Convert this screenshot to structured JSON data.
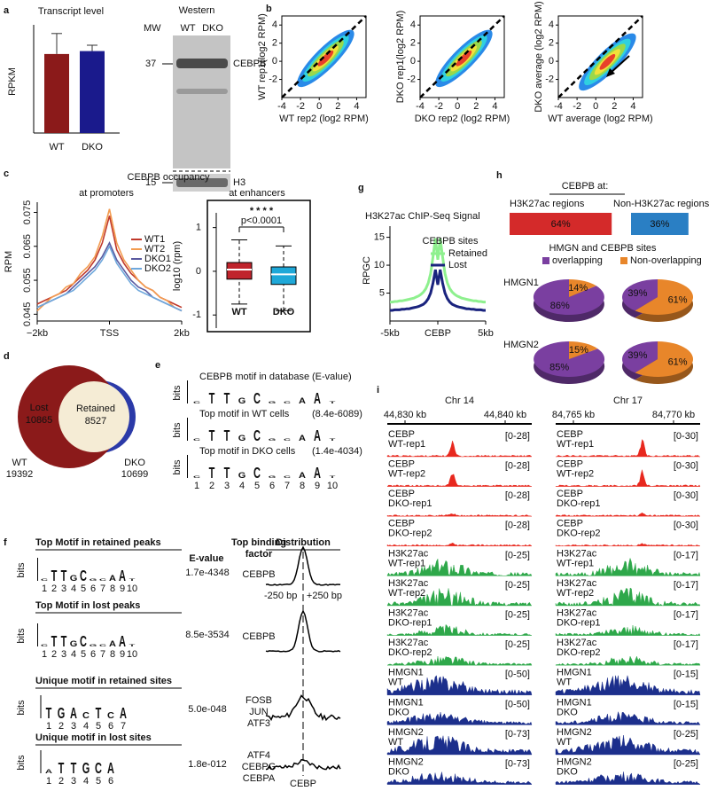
{
  "logo_colors": {
    "A": "#e8302e",
    "C": "#1e3ad8",
    "G": "#f4a21e",
    "T": "#25a33a"
  },
  "a": {
    "letter": "a",
    "title": "Transcript  level",
    "ylabel": "RPKM",
    "categories": [
      "WT",
      "DKO"
    ],
    "values": [
      27,
      28
    ],
    "errors": [
      7,
      2
    ],
    "colors": [
      "#8b1a1a",
      "#1a1a8c"
    ],
    "western": {
      "title": "Western",
      "mw": "MW",
      "lanes": [
        "WT",
        "DKO"
      ],
      "markers": [
        "37",
        "15"
      ],
      "bands": [
        "CEBPB",
        "H3"
      ]
    }
  },
  "b": {
    "letter": "b",
    "xlim": [
      -4,
      5
    ],
    "ylim": [
      -4,
      5
    ],
    "xticks": [
      -4,
      -2,
      0,
      2,
      4
    ],
    "yticks": [
      -2,
      0,
      2,
      4
    ],
    "plots": [
      {
        "xlabel": "WT rep2 (log2 RPM)",
        "ylabel": "WT rep1(log2 RPM)"
      },
      {
        "xlabel": "DKO rep2 (log2 RPM)",
        "ylabel": "DKO rep1(log2 RPM)"
      },
      {
        "xlabel": "WT average (log2 RPM)",
        "ylabel": "DKO average (log2 RPM)"
      }
    ]
  },
  "c": {
    "letter": "c",
    "title": "CEBPB occupancy",
    "promoters": {
      "type": "line",
      "title": "at promoters",
      "ylabel": "RPM",
      "xlim": [
        -2,
        2
      ],
      "ylim": [
        0.043,
        0.078
      ],
      "yticks": [
        0.045,
        0.055,
        0.065,
        0.075
      ],
      "xticks": [
        {
          "value": -2,
          "label": "−2kb"
        },
        {
          "value": 0,
          "label": "TSS"
        },
        {
          "value": 2,
          "label": "2kb"
        }
      ],
      "x": [
        -2,
        -1.8,
        -1.6,
        -1.4,
        -1.2,
        -1,
        -0.8,
        -0.6,
        -0.4,
        -0.2,
        0,
        0.2,
        0.4,
        0.6,
        0.8,
        1,
        1.2,
        1.4,
        1.6,
        1.8,
        2
      ],
      "series": [
        {
          "name": "WT1",
          "color": "#c0392b",
          "values": [
            0.048,
            0.049,
            0.05,
            0.051,
            0.052,
            0.054,
            0.056,
            0.058,
            0.061,
            0.066,
            0.074,
            0.064,
            0.06,
            0.057,
            0.055,
            0.053,
            0.052,
            0.05,
            0.049,
            0.048,
            0.047
          ]
        },
        {
          "name": "WT2",
          "color": "#f39c50",
          "values": [
            0.046,
            0.048,
            0.05,
            0.051,
            0.053,
            0.054,
            0.057,
            0.059,
            0.062,
            0.068,
            0.076,
            0.066,
            0.061,
            0.058,
            0.055,
            0.053,
            0.052,
            0.05,
            0.049,
            0.047,
            0.046
          ]
        },
        {
          "name": "DKO1",
          "color": "#5a5aa0",
          "values": [
            0.047,
            0.048,
            0.049,
            0.05,
            0.051,
            0.053,
            0.055,
            0.057,
            0.059,
            0.062,
            0.066,
            0.061,
            0.058,
            0.055,
            0.053,
            0.052,
            0.05,
            0.049,
            0.048,
            0.047,
            0.046
          ]
        },
        {
          "name": "DKO2",
          "color": "#6fa8dc",
          "values": [
            0.047,
            0.048,
            0.049,
            0.05,
            0.051,
            0.052,
            0.054,
            0.056,
            0.058,
            0.061,
            0.065,
            0.06,
            0.057,
            0.054,
            0.052,
            0.051,
            0.05,
            0.049,
            0.048,
            0.047,
            0.046
          ]
        }
      ]
    },
    "enhancers": {
      "type": "box",
      "title": "at enhancers",
      "ylabel": "log10 (rpm)",
      "ylim": [
        -1.3,
        1.5
      ],
      "yticks": [
        -1,
        0,
        1
      ],
      "categories": [
        "WT",
        "DKO"
      ],
      "colors": [
        "#c0242c",
        "#1fa8d8"
      ],
      "boxes": [
        {
          "whislo": -0.75,
          "q1": -0.18,
          "med": 0.04,
          "q3": 0.2,
          "whishi": 0.72
        },
        {
          "whislo": -0.9,
          "q1": -0.3,
          "med": -0.07,
          "q3": 0.1,
          "whishi": 0.58
        }
      ],
      "stars": "* * * *",
      "pvalue": "p<0.0001"
    }
  },
  "d": {
    "letter": "d",
    "lost": {
      "label": "Lost",
      "value": "10865"
    },
    "retained": {
      "label": "Retained",
      "value": "8527"
    },
    "wt": {
      "label": "WT",
      "value": "19392"
    },
    "dko": {
      "label": "DKO",
      "value": "10699"
    }
  },
  "e": {
    "letter": "e",
    "ylabel": "bits",
    "positions": [
      "1",
      "2",
      "3",
      "4",
      "5",
      "6",
      "7",
      "8",
      "9",
      "10"
    ],
    "logos": [
      {
        "title": "CEBPB motif in database",
        "evalue": "(E-value)",
        "letters": [
          "C",
          "T",
          "T",
          "G",
          "C",
          "G",
          "C",
          "A",
          "A",
          "T"
        ]
      },
      {
        "title": "Top motif in WT cells",
        "evalue": "(8.4e-6089)",
        "letters": [
          "C",
          "T",
          "T",
          "G",
          "C",
          "G",
          "C",
          "A",
          "A",
          "T"
        ]
      },
      {
        "title": "Top motif in DKO cells",
        "evalue": "(1.4e-4034)",
        "letters": [
          "C",
          "T",
          "T",
          "G",
          "C",
          "G",
          "C",
          "A",
          "A",
          "T"
        ]
      }
    ]
  },
  "f": {
    "letter": "f",
    "ylabel": "bits",
    "headers": {
      "evalue": "E-value",
      "factor": [
        "Top binding",
        "factor"
      ],
      "distribution": "Distribution"
    },
    "range": [
      "-250 bp",
      "+250 bp"
    ],
    "center": "CEBP",
    "rows": [
      {
        "title": "Top Motif in retained peaks",
        "letters": [
          "C",
          "T",
          "T",
          "G",
          "C",
          "G",
          "C",
          "A",
          "A",
          "T"
        ],
        "positions": [
          "1",
          "2",
          "3",
          "4",
          "5",
          "6",
          "7",
          "8",
          "9",
          "10"
        ],
        "evalue": "1.7e-4348",
        "factors": [
          "CEBPB"
        ]
      },
      {
        "title": "Top Motif in lost peaks",
        "letters": [
          "C",
          "T",
          "T",
          "G",
          "C",
          "G",
          "C",
          "A",
          "A",
          "T"
        ],
        "positions": [
          "1",
          "2",
          "3",
          "4",
          "5",
          "6",
          "7",
          "8",
          "9",
          "10"
        ],
        "evalue": "8.5e-3534",
        "factors": [
          "CEBPB"
        ]
      },
      {
        "title": "Unique motif in retained sites",
        "letters": [
          "T",
          "G",
          "A",
          "C",
          "T",
          "C",
          "A"
        ],
        "positions": [
          "1",
          "2",
          "3",
          "4",
          "5",
          "6",
          "7"
        ],
        "evalue": "5.0e-048",
        "factors": [
          "FOSB",
          "JUN",
          "ATF3"
        ]
      },
      {
        "title": "Unique motif in lost sites",
        "letters": [
          "A",
          "T",
          "T",
          "G",
          "C",
          "A"
        ],
        "positions": [
          "1",
          "2",
          "3",
          "4",
          "5",
          "6"
        ],
        "evalue": "1.8e-012",
        "factors": [
          "ATF4",
          "CEBPG",
          "CEBPA"
        ]
      }
    ]
  },
  "g": {
    "letter": "g",
    "type": "line",
    "title": "H3K27ac  ChIP-Seq Signal",
    "ylabel": "RPGC",
    "legend_title": "CEBPB sites",
    "xlim": [
      -5,
      5
    ],
    "ylim": [
      0,
      17
    ],
    "yticks": [
      5,
      10,
      15
    ],
    "xticks": [
      {
        "value": -5,
        "label": "-5kb"
      },
      {
        "value": 0,
        "label": "CEBP"
      },
      {
        "value": 5,
        "label": "5kb"
      }
    ],
    "x": [
      -5,
      -4.75,
      -4.5,
      -4.25,
      -4,
      -3.75,
      -3.5,
      -3.25,
      -3,
      -2.75,
      -2.5,
      -2.25,
      -2,
      -1.75,
      -1.5,
      -1.25,
      -1,
      -0.75,
      -0.5,
      -0.25,
      0,
      0.25,
      0.5,
      0.75,
      1,
      1.25,
      1.5,
      1.75,
      2,
      2.25,
      2.5,
      2.75,
      3,
      3.25,
      3.5,
      3.75,
      4,
      4.25,
      4.5,
      4.75,
      5
    ],
    "series": [
      {
        "name": "Retained",
        "color": "#8ef08e",
        "values": [
          3.4,
          3.4,
          3.5,
          3.5,
          3.6,
          3.6,
          3.7,
          3.8,
          3.9,
          4.0,
          4.1,
          4.3,
          4.5,
          4.8,
          5.2,
          5.8,
          6.8,
          8.5,
          11.5,
          14.8,
          11,
          14.8,
          11.5,
          8.5,
          6.8,
          5.8,
          5.2,
          4.8,
          4.5,
          4.3,
          4.1,
          4.0,
          3.9,
          3.8,
          3.7,
          3.6,
          3.6,
          3.5,
          3.5,
          3.4,
          3.4
        ]
      },
      {
        "name": "Lost",
        "color": "#1a237e",
        "values": [
          1.9,
          1.9,
          2,
          2,
          2,
          2.1,
          2.1,
          2.2,
          2.2,
          2.3,
          2.4,
          2.5,
          2.6,
          2.8,
          3.0,
          3.4,
          4.0,
          5.0,
          6.8,
          9.2,
          6.5,
          9.2,
          6.8,
          5.0,
          4.0,
          3.4,
          3.0,
          2.8,
          2.6,
          2.5,
          2.4,
          2.3,
          2.2,
          2.2,
          2.1,
          2.1,
          2,
          2,
          2,
          1.9,
          1.9
        ]
      }
    ]
  },
  "h": {
    "letter": "h",
    "title": "CEBPB at:",
    "bars": {
      "categories": [
        "H3K27ac  regions",
        "Non-H3K27ac  regions"
      ],
      "values": [
        64,
        36
      ],
      "value_labels": [
        "64%",
        "36%"
      ],
      "colors": [
        "#d42a2a",
        "#2a7fc4"
      ]
    },
    "pies": {
      "title": "HMGN and CEBPB sites",
      "legend": [
        "overlapping",
        "Non-overlapping"
      ],
      "colors": [
        "#7a3fa0",
        "#e8862a"
      ],
      "rows": [
        {
          "name": "HMGN1",
          "charts": [
            {
              "values": [
                86,
                14
              ],
              "value_labels": [
                "86%",
                "14%"
              ]
            },
            {
              "values": [
                39,
                61
              ],
              "value_labels": [
                "39%",
                "61%"
              ]
            }
          ]
        },
        {
          "name": "HMGN2",
          "charts": [
            {
              "values": [
                85,
                15
              ],
              "value_labels": [
                "85%",
                "15%"
              ]
            },
            {
              "values": [
                39,
                61
              ],
              "value_labels": [
                "39%",
                "61%"
              ]
            }
          ]
        }
      ]
    }
  },
  "i": {
    "letter": "i",
    "chromosomes": [
      {
        "name": "Chr 14",
        "coords": [
          "44,830 kb",
          "44,840 kb"
        ],
        "ranges": [
          "[0-28]",
          "[0-28]",
          "[0-28]",
          "[0-28]",
          "[0-25]",
          "[0-25]",
          "[0-25]",
          "[0-25]",
          "[0-50]",
          "[0-50]",
          "[0-73]",
          "[0-73]"
        ]
      },
      {
        "name": "Chr 17",
        "coords": [
          "84,765 kb",
          "84,770 kb"
        ],
        "ranges": [
          "[0-30]",
          "[0-30]",
          "[0-30]",
          "[0-30]",
          "[0-17]",
          "[0-17]",
          "[0-17]",
          "[0-17]",
          "[0-15]",
          "[0-15]",
          "[0-25]",
          "[0-25]"
        ]
      }
    ],
    "tracks": [
      {
        "label": [
          "CEBP",
          "WT-rep1"
        ],
        "color": "#e8281e"
      },
      {
        "label": [
          "CEBP",
          "WT-rep2"
        ],
        "color": "#e8281e"
      },
      {
        "label": [
          "CEBP",
          "DKO-rep1"
        ],
        "color": "#e8281e"
      },
      {
        "label": [
          "CEBP",
          "DKO-rep2"
        ],
        "color": "#e8281e"
      },
      {
        "label": [
          "H3K27ac",
          "WT-rep1"
        ],
        "color": "#2ea84a"
      },
      {
        "label": [
          "H3K27ac",
          "WT-rep2"
        ],
        "color": "#2ea84a"
      },
      {
        "label": [
          "H3K27ac",
          "DKO-rep1"
        ],
        "color": "#2ea84a"
      },
      {
        "label": [
          "H3K27ac",
          "DKO-rep2"
        ],
        "color": "#2ea84a"
      },
      {
        "label": [
          "HMGN1",
          "WT"
        ],
        "color": "#1c2f8c"
      },
      {
        "label": [
          "HMGN1",
          "DKO"
        ],
        "color": "#1c2f8c"
      },
      {
        "label": [
          "HMGN2",
          "WT"
        ],
        "color": "#1c2f8c"
      },
      {
        "label": [
          "HMGN2",
          "DKO"
        ],
        "color": "#1c2f8c"
      }
    ]
  }
}
